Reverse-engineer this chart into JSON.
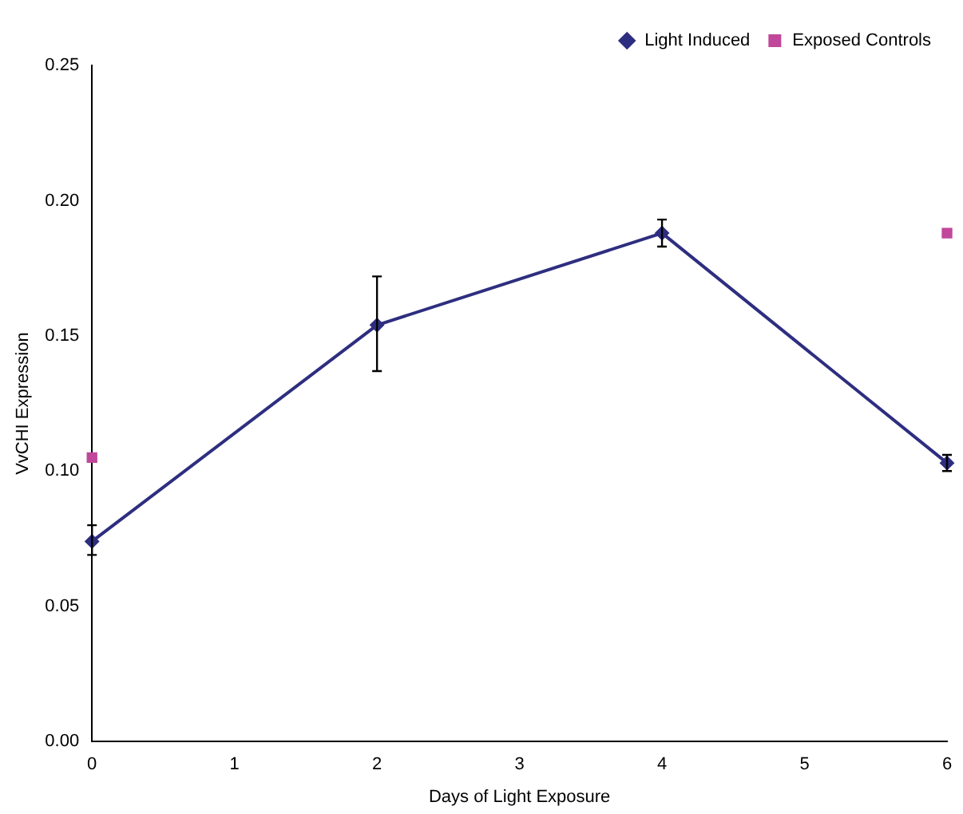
{
  "chart_data": {
    "type": "line",
    "xlabel": "Days of Light Exposure",
    "ylabel": "VvCHI Expression",
    "xlim": [
      0,
      6
    ],
    "xticks": [
      0,
      1,
      2,
      3,
      4,
      5,
      6
    ],
    "ylim": [
      0,
      0.25
    ],
    "yticks": [
      {
        "value": 0,
        "label": "0.00"
      },
      {
        "value": 0.05,
        "label": "0.05"
      },
      {
        "value": 0.1,
        "label": "0.10"
      },
      {
        "value": 0.15,
        "label": "0.15"
      },
      {
        "value": 0.2,
        "label": "0.20"
      },
      {
        "value": 0.25,
        "label": "0.25"
      }
    ],
    "legend": "top right",
    "series": [
      {
        "name": "Light Induced",
        "marker": "diamond",
        "color": "#2e2e80",
        "x": [
          0,
          2,
          4,
          6
        ],
        "values": [
          0.074,
          0.154,
          0.188,
          0.103
        ],
        "errors": [
          [
            0.069,
            0.08
          ],
          [
            0.137,
            0.172
          ],
          [
            0.183,
            0.193
          ],
          [
            0.1,
            0.106
          ]
        ]
      },
      {
        "name": "Exposed Controls",
        "type": "scatter",
        "marker": "square",
        "color": "#c0479a",
        "x": [
          0,
          6
        ],
        "values": [
          0.105,
          0.188
        ]
      }
    ]
  }
}
